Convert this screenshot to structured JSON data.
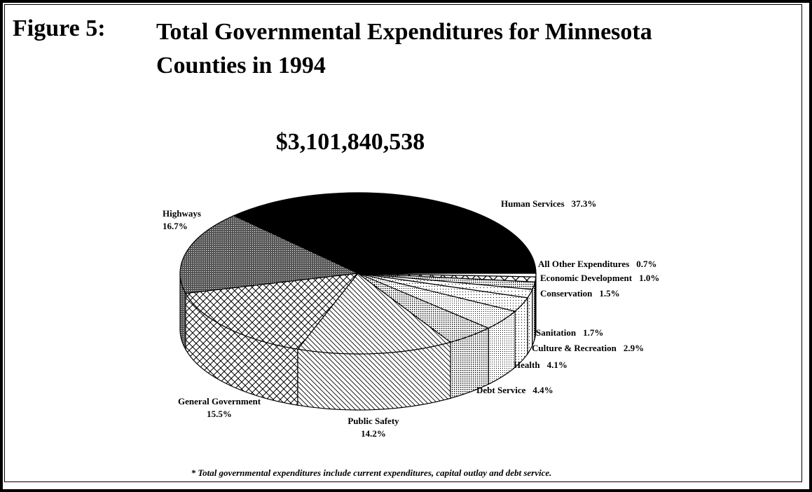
{
  "chart_data": {
    "type": "pie",
    "figure_label": "Figure 5:",
    "title": "Total Governmental Expenditures for Minnesota Counties in 1994",
    "subtitle": "$3,101,840,538",
    "categories": [
      "Human Services",
      "Highways",
      "General Government",
      "Public Safety",
      "Debt Service",
      "Health",
      "Culture & Recreation",
      "Sanitation",
      "Conservation",
      "Economic Development",
      "All Other Expenditures"
    ],
    "values": [
      37.3,
      16.7,
      15.5,
      14.2,
      4.4,
      4.1,
      2.9,
      1.7,
      1.5,
      1.0,
      0.7
    ],
    "value_labels": [
      "37.3%",
      "16.7%",
      "15.5%",
      "14.2%",
      "4.4%",
      "4.1%",
      "2.9%",
      "1.7%",
      "1.5%",
      "1.0%",
      "0.7%"
    ],
    "patterns": [
      "solid",
      "dense-dots",
      "crosshatch",
      "diagonal",
      "dots",
      "fine-dots",
      "light-dots",
      "sparse-dots",
      "dots",
      "crosshatch-wide",
      "plain"
    ],
    "footnote": "* Total governmental expenditures include current expenditures, capital outlay and debt service."
  }
}
